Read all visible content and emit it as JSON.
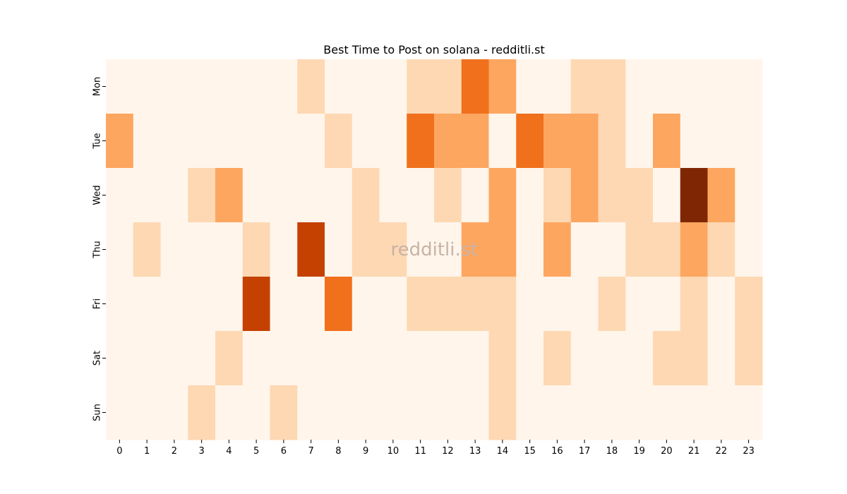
{
  "chart_data": {
    "type": "heatmap",
    "title": "Best Time to Post on solana - redditli.st",
    "watermark": "redditli.st",
    "x_categories": [
      "0",
      "1",
      "2",
      "3",
      "4",
      "5",
      "6",
      "7",
      "8",
      "9",
      "10",
      "11",
      "12",
      "13",
      "14",
      "15",
      "16",
      "17",
      "18",
      "19",
      "20",
      "21",
      "22",
      "23"
    ],
    "y_categories": [
      "Mon",
      "Tue",
      "Wed",
      "Thu",
      "Fri",
      "Sat",
      "Sun"
    ],
    "values": [
      [
        0,
        0,
        0,
        0,
        0,
        0,
        0,
        1,
        0,
        0,
        0,
        1,
        1,
        3,
        2,
        0,
        0,
        1,
        1,
        0,
        0,
        0,
        0,
        0
      ],
      [
        2,
        0,
        0,
        0,
        0,
        0,
        0,
        0,
        1,
        0,
        0,
        3,
        2,
        2,
        0,
        3,
        2,
        2,
        1,
        0,
        2,
        0,
        0,
        0
      ],
      [
        0,
        0,
        0,
        1,
        2,
        0,
        0,
        0,
        0,
        1,
        0,
        0,
        1,
        0,
        2,
        0,
        1,
        2,
        1,
        1,
        0,
        5,
        2,
        0
      ],
      [
        0,
        1,
        0,
        0,
        0,
        1,
        0,
        4,
        0,
        1,
        1,
        0,
        0,
        2,
        2,
        0,
        2,
        0,
        0,
        1,
        1,
        2,
        1,
        0
      ],
      [
        0,
        0,
        0,
        0,
        0,
        4,
        0,
        0,
        3,
        0,
        0,
        1,
        1,
        1,
        1,
        0,
        0,
        0,
        1,
        0,
        0,
        1,
        0,
        1
      ],
      [
        0,
        0,
        0,
        0,
        1,
        0,
        0,
        0,
        0,
        0,
        0,
        0,
        0,
        0,
        1,
        0,
        1,
        0,
        0,
        0,
        1,
        1,
        0,
        1
      ],
      [
        0,
        0,
        0,
        1,
        0,
        0,
        1,
        0,
        0,
        0,
        0,
        0,
        0,
        0,
        1,
        0,
        0,
        0,
        0,
        0,
        0,
        0,
        0,
        0
      ]
    ],
    "vmin": 0,
    "vmax": 5,
    "colormap": [
      "#fff5eb",
      "#fdd8b3",
      "#fda660",
      "#f0701c",
      "#c54102",
      "#7f2704"
    ],
    "grid": false,
    "legend": "none"
  }
}
